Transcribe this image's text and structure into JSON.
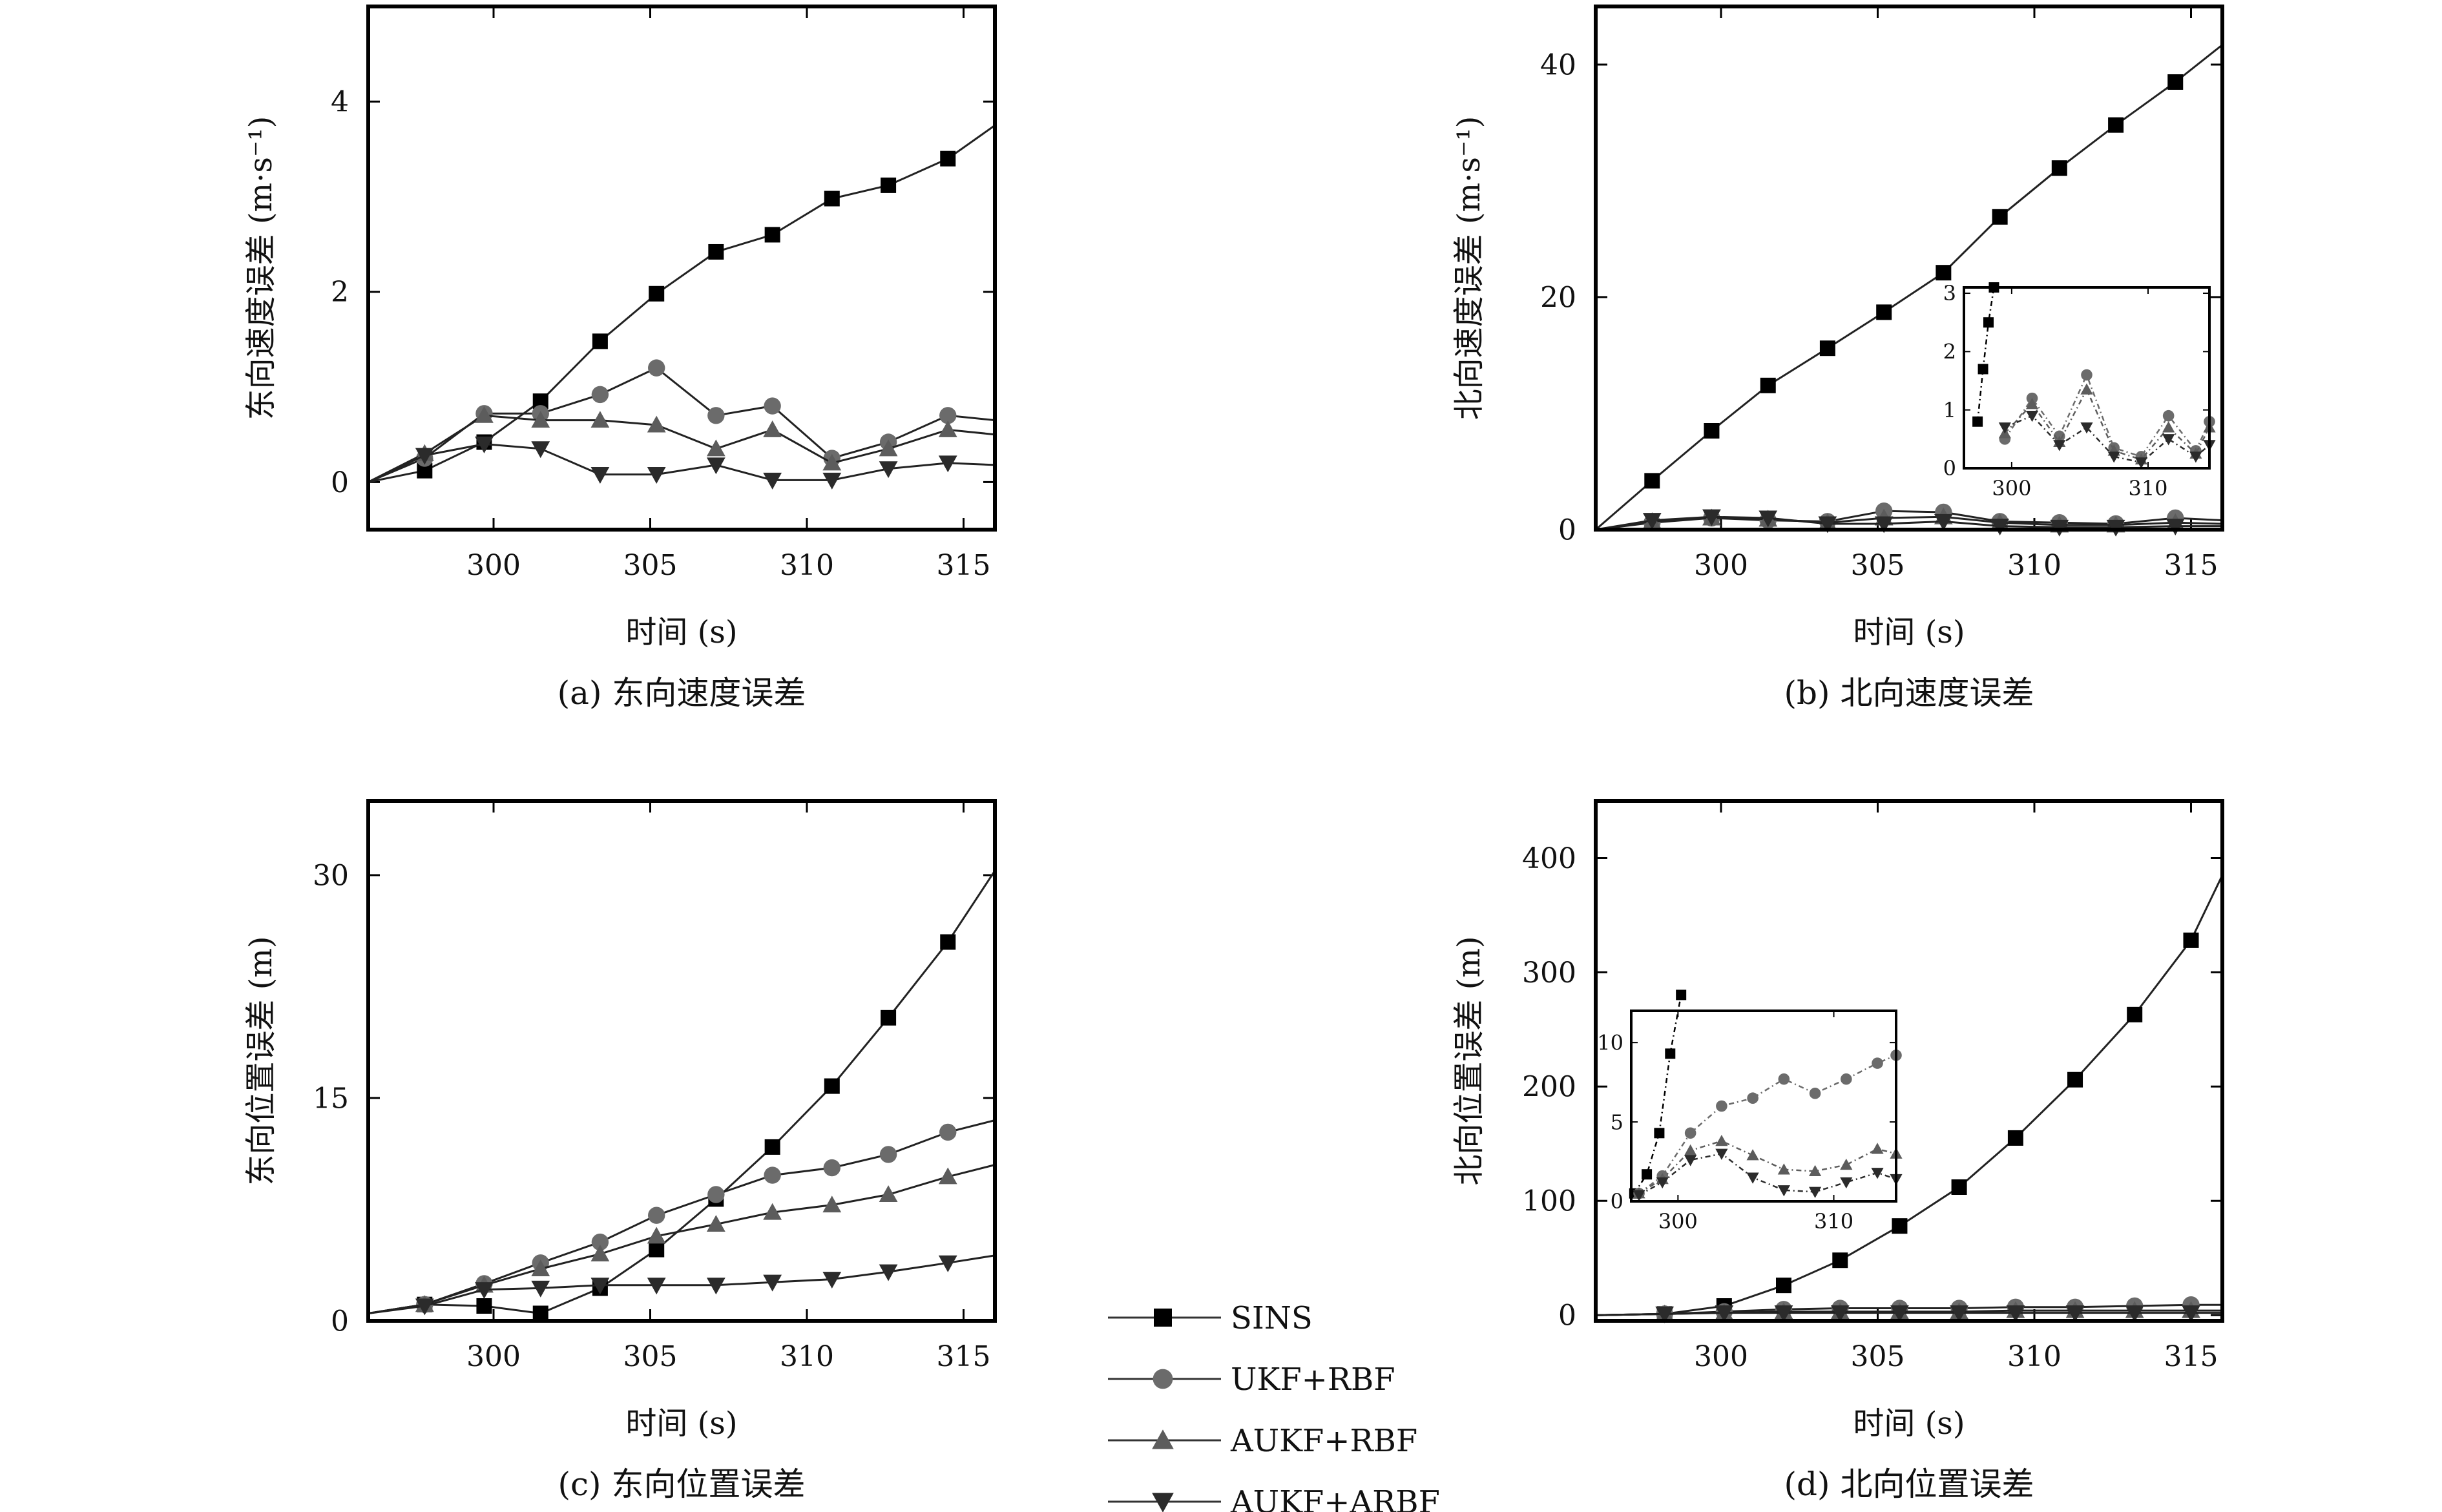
{
  "legend": {
    "entries": [
      {
        "name": "SINS",
        "marker": "square",
        "color": "#000000"
      },
      {
        "name": "UKF+RBF",
        "marker": "circle",
        "color": "#6b6b6b"
      },
      {
        "name": "AUKF+RBF",
        "marker": "triangle-up",
        "color": "#5c5c5c"
      },
      {
        "name": "AUKF+ARBF",
        "marker": "triangle-down",
        "color": "#2b2b2b"
      }
    ],
    "placement": "bottom-center"
  },
  "chart_data": [
    {
      "id": "a",
      "type": "line",
      "caption": "(a) 东向速度误差",
      "xlabel": "时间 (s)",
      "ylabel": "东向速度误差 (m·s⁻¹)",
      "xlim": [
        296,
        316
      ],
      "ylim": [
        -0.5,
        5
      ],
      "xticks": [
        300,
        305,
        310,
        315
      ],
      "yticks": [
        0,
        2,
        4
      ],
      "series": [
        {
          "name": "SINS",
          "x": [
            296,
            297.8,
            299.7,
            301.5,
            303.4,
            305.2,
            307.1,
            308.9,
            310.8,
            312.6,
            314.5,
            316
          ],
          "y": [
            0,
            0.12,
            0.42,
            0.85,
            1.48,
            1.98,
            2.42,
            2.6,
            2.98,
            3.12,
            3.4,
            3.75
          ]
        },
        {
          "name": "UKF+RBF",
          "x": [
            296,
            297.8,
            299.7,
            301.5,
            303.4,
            305.2,
            307.1,
            308.9,
            310.8,
            312.6,
            314.5,
            316
          ],
          "y": [
            0,
            0.25,
            0.72,
            0.72,
            0.92,
            1.2,
            0.7,
            0.8,
            0.25,
            0.42,
            0.7,
            0.65
          ]
        },
        {
          "name": "AUKF+RBF",
          "x": [
            296,
            297.8,
            299.7,
            301.5,
            303.4,
            305.2,
            307.1,
            308.9,
            310.8,
            312.6,
            314.5,
            316
          ],
          "y": [
            0,
            0.3,
            0.7,
            0.65,
            0.65,
            0.6,
            0.35,
            0.55,
            0.2,
            0.35,
            0.55,
            0.5
          ]
        },
        {
          "name": "AUKF+ARBF",
          "x": [
            296,
            297.8,
            299.7,
            301.5,
            303.4,
            305.2,
            307.1,
            308.9,
            310.8,
            312.6,
            314.5,
            316
          ],
          "y": [
            0,
            0.28,
            0.4,
            0.35,
            0.08,
            0.08,
            0.18,
            0.02,
            0.02,
            0.14,
            0.2,
            0.18
          ]
        }
      ]
    },
    {
      "id": "b",
      "type": "line",
      "caption": "(b) 北向速度误差",
      "xlabel": "时间 (s)",
      "ylabel": "北向速度误差 (m·s⁻¹)",
      "xlim": [
        296,
        316
      ],
      "ylim": [
        0,
        45
      ],
      "xticks": [
        300,
        305,
        310,
        315
      ],
      "yticks": [
        0,
        20,
        40
      ],
      "series": [
        {
          "name": "SINS",
          "x": [
            296,
            297.8,
            299.7,
            301.5,
            303.4,
            305.2,
            307.1,
            308.9,
            310.8,
            312.6,
            314.5,
            316
          ],
          "y": [
            0,
            4.2,
            8.5,
            12.4,
            15.6,
            18.7,
            22.1,
            26.9,
            31.1,
            34.8,
            38.5,
            41.7
          ]
        },
        {
          "name": "UKF+RBF",
          "x": [
            296,
            297.8,
            299.7,
            301.5,
            303.4,
            305.2,
            307.1,
            308.9,
            310.8,
            312.6,
            314.5,
            316
          ],
          "y": [
            0,
            0.6,
            1.0,
            0.8,
            0.7,
            1.6,
            1.5,
            0.7,
            0.6,
            0.5,
            1.0,
            0.8
          ]
        },
        {
          "name": "AUKF+RBF",
          "x": [
            296,
            297.8,
            299.7,
            301.5,
            303.4,
            305.2,
            307.1,
            308.9,
            310.8,
            312.6,
            314.5,
            316
          ],
          "y": [
            0,
            0.7,
            1.0,
            0.9,
            0.6,
            1.0,
            1.1,
            0.6,
            0.4,
            0.4,
            0.6,
            0.5
          ]
        },
        {
          "name": "AUKF+ARBF",
          "x": [
            296,
            297.8,
            299.7,
            301.5,
            303.4,
            305.2,
            307.1,
            308.9,
            310.8,
            312.6,
            314.5,
            316
          ],
          "y": [
            0,
            0.8,
            1.1,
            1.0,
            0.5,
            0.5,
            0.7,
            0.3,
            0.2,
            0.2,
            0.3,
            0.3
          ]
        }
      ],
      "inset": {
        "xlim": [
          296.5,
          314.5
        ],
        "ylim": [
          0,
          3.1
        ],
        "xticks": [
          300,
          310
        ],
        "yticks": [
          0,
          1,
          2,
          3
        ],
        "series": [
          {
            "name": "SINS",
            "x": [
              297.5,
              297.9,
              298.3,
              298.7
            ],
            "y": [
              0.8,
              1.7,
              2.5,
              3.1
            ]
          },
          {
            "name": "UKF+RBF",
            "x": [
              299.5,
              301.5,
              303.5,
              305.5,
              307.5,
              309.5,
              311.5,
              313.5,
              314.5
            ],
            "y": [
              0.5,
              1.2,
              0.55,
              1.6,
              0.35,
              0.2,
              0.9,
              0.3,
              0.8
            ]
          },
          {
            "name": "AUKF+RBF",
            "x": [
              299.5,
              301.5,
              303.5,
              305.5,
              307.5,
              309.5,
              311.5,
              313.5,
              314.5
            ],
            "y": [
              0.6,
              1.1,
              0.45,
              1.35,
              0.3,
              0.15,
              0.7,
              0.25,
              0.7
            ]
          },
          {
            "name": "AUKF+ARBF",
            "x": [
              299.5,
              301.5,
              303.5,
              305.5,
              307.5,
              309.5,
              311.5,
              313.5,
              314.5
            ],
            "y": [
              0.7,
              0.9,
              0.4,
              0.7,
              0.2,
              0.1,
              0.5,
              0.2,
              0.4
            ]
          }
        ]
      }
    },
    {
      "id": "c",
      "type": "line",
      "caption": "(c) 东向位置误差",
      "xlabel": "时间 (s)",
      "ylabel": "东向位置误差 (m)",
      "xlim": [
        296,
        316
      ],
      "ylim": [
        0,
        35
      ],
      "xticks": [
        300,
        305,
        310,
        315
      ],
      "yticks": [
        0,
        15,
        30
      ],
      "series": [
        {
          "name": "SINS",
          "x": [
            296,
            297.8,
            299.7,
            301.5,
            303.4,
            305.2,
            307.1,
            308.9,
            310.8,
            312.6,
            314.5,
            316
          ],
          "y": [
            0.5,
            1.1,
            1.0,
            0.5,
            2.2,
            4.8,
            8.2,
            11.7,
            15.8,
            20.4,
            25.5,
            30.3
          ]
        },
        {
          "name": "UKF+RBF",
          "x": [
            296,
            297.8,
            299.7,
            301.5,
            303.4,
            305.2,
            307.1,
            308.9,
            310.8,
            312.6,
            314.5,
            316
          ],
          "y": [
            0.5,
            1.1,
            2.5,
            3.9,
            5.3,
            7.1,
            8.5,
            9.8,
            10.3,
            11.2,
            12.7,
            13.5
          ]
        },
        {
          "name": "AUKF+RBF",
          "x": [
            296,
            297.8,
            299.7,
            301.5,
            303.4,
            305.2,
            307.1,
            308.9,
            310.8,
            312.6,
            314.5,
            316
          ],
          "y": [
            0.5,
            1.1,
            2.4,
            3.5,
            4.5,
            5.7,
            6.5,
            7.3,
            7.8,
            8.5,
            9.7,
            10.5
          ]
        },
        {
          "name": "AUKF+ARBF",
          "x": [
            296,
            297.8,
            299.7,
            301.5,
            303.4,
            305.2,
            307.1,
            308.9,
            310.8,
            312.6,
            314.5,
            316
          ],
          "y": [
            0.5,
            1.0,
            2.1,
            2.2,
            2.4,
            2.4,
            2.4,
            2.6,
            2.8,
            3.3,
            3.9,
            4.4
          ]
        }
      ]
    },
    {
      "id": "d",
      "type": "line",
      "caption": "(d) 北向位置误差",
      "xlabel": "时间 (s)",
      "ylabel": "北向位置误差 (m)",
      "xlim": [
        296,
        316
      ],
      "ylim": [
        -5,
        450
      ],
      "xticks": [
        300,
        305,
        310,
        315
      ],
      "yticks": [
        0,
        100,
        200,
        300,
        400
      ],
      "series": [
        {
          "name": "SINS",
          "x": [
            296,
            298.2,
            300.1,
            302,
            303.8,
            305.7,
            307.6,
            309.4,
            311.3,
            313.2,
            315,
            316
          ],
          "y": [
            0,
            1,
            8,
            26,
            48,
            78,
            112,
            155,
            206,
            263,
            328,
            385
          ]
        },
        {
          "name": "UKF+RBF",
          "x": [
            296,
            298.2,
            300.1,
            302,
            303.8,
            305.7,
            307.6,
            309.4,
            311.3,
            313.2,
            315,
            316
          ],
          "y": [
            0,
            1,
            3,
            5,
            6,
            6,
            6,
            7,
            7,
            8,
            9,
            9
          ]
        },
        {
          "name": "AUKF+RBF",
          "x": [
            296,
            298.2,
            300.1,
            302,
            303.8,
            305.7,
            307.6,
            309.4,
            311.3,
            313.2,
            315,
            316
          ],
          "y": [
            0,
            1,
            2,
            3,
            3,
            3,
            3,
            4,
            4,
            4,
            4,
            4
          ]
        },
        {
          "name": "AUKF+ARBF",
          "x": [
            296,
            298.2,
            300.1,
            302,
            303.8,
            305.7,
            307.6,
            309.4,
            311.3,
            313.2,
            315,
            316
          ],
          "y": [
            0,
            1,
            2,
            2,
            2,
            2,
            2,
            2,
            2,
            2,
            2,
            2
          ]
        }
      ],
      "inset": {
        "xlim": [
          297,
          314
        ],
        "ylim": [
          0,
          12
        ],
        "xticks": [
          300,
          310
        ],
        "yticks": [
          0,
          5,
          10
        ],
        "series": [
          {
            "name": "SINS",
            "x": [
              297.2,
              298.0,
              298.8,
              299.5,
              300.2
            ],
            "y": [
              0.5,
              1.7,
              4.3,
              9.3,
              13.0
            ]
          },
          {
            "name": "UKF+RBF",
            "x": [
              297.5,
              299,
              300.8,
              302.8,
              304.8,
              306.8,
              308.8,
              310.8,
              312.8,
              314
            ],
            "y": [
              0.5,
              1.6,
              4.3,
              6.0,
              6.5,
              7.7,
              6.8,
              7.7,
              8.7,
              9.2
            ]
          },
          {
            "name": "AUKF+RBF",
            "x": [
              297.5,
              299,
              300.8,
              302.8,
              304.8,
              306.8,
              308.8,
              310.8,
              312.8,
              314
            ],
            "y": [
              0.5,
              1.4,
              3.2,
              3.8,
              2.9,
              2.0,
              1.9,
              2.3,
              3.3,
              3.0
            ]
          },
          {
            "name": "AUKF+ARBF",
            "x": [
              297.5,
              299,
              300.8,
              302.8,
              304.8,
              306.8,
              308.8,
              310.8,
              312.8,
              314
            ],
            "y": [
              0.4,
              1.2,
              2.6,
              3.0,
              1.5,
              0.7,
              0.6,
              1.2,
              1.8,
              1.4
            ]
          }
        ]
      }
    }
  ]
}
